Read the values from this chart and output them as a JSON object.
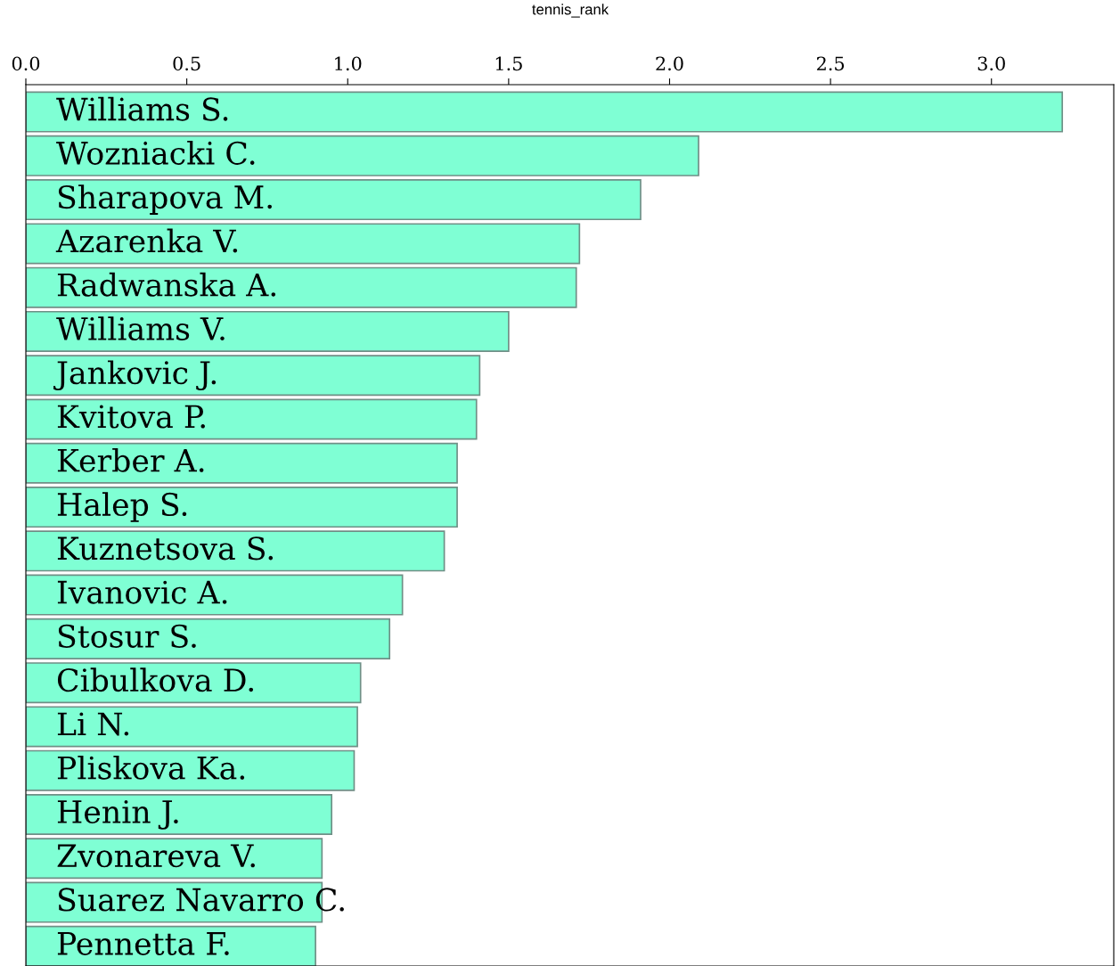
{
  "chart_data": {
    "type": "bar",
    "orientation": "horizontal",
    "title": "tennis_rank",
    "categories": [
      "Williams S.",
      "Wozniacki C.",
      "Sharapova M.",
      "Azarenka V.",
      "Radwanska A.",
      "Williams V.",
      "Jankovic J.",
      "Kvitova P.",
      "Kerber A.",
      "Halep S.",
      "Kuznetsova S.",
      "Ivanovic A.",
      "Stosur S.",
      "Cibulkova D.",
      "Li N.",
      "Pliskova Ka.",
      "Henin J.",
      "Zvonareva V.",
      "Suarez Navarro C.",
      "Pennetta F."
    ],
    "values": [
      3.22,
      2.09,
      1.91,
      1.72,
      1.71,
      1.5,
      1.41,
      1.4,
      1.34,
      1.34,
      1.3,
      1.17,
      1.13,
      1.04,
      1.03,
      1.02,
      0.95,
      0.92,
      0.92,
      0.9
    ],
    "color": "#7fffd4",
    "xlim": [
      0,
      3.38
    ],
    "xticks": [
      {
        "value": 0,
        "label": "0.0"
      },
      {
        "value": 0.5,
        "label": "0.5"
      },
      {
        "value": 1,
        "label": "1.0"
      },
      {
        "value": 1.5,
        "label": "1.5"
      },
      {
        "value": 2,
        "label": "2.0"
      },
      {
        "value": 2.5,
        "label": "2.5"
      },
      {
        "value": 3,
        "label": "3.0"
      }
    ],
    "grid": false
  }
}
